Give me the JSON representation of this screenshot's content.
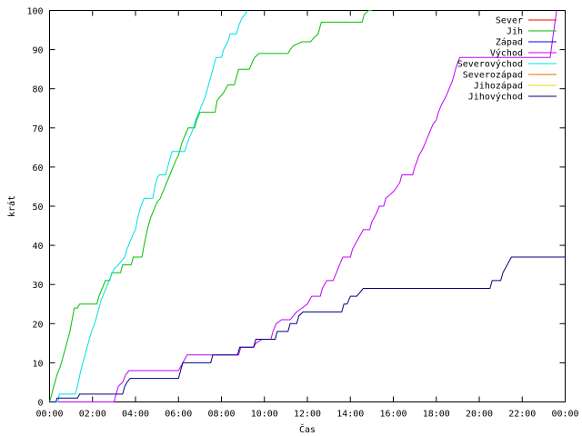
{
  "chart_data": {
    "type": "line",
    "title": "",
    "xlabel": "Čas",
    "ylabel": "krát",
    "xlim": [
      0,
      24
    ],
    "ylim": [
      0,
      100
    ],
    "x_ticks": [
      {
        "value": 0,
        "label": "00:00"
      },
      {
        "value": 2,
        "label": "02:00"
      },
      {
        "value": 4,
        "label": "04:00"
      },
      {
        "value": 6,
        "label": "06:00"
      },
      {
        "value": 8,
        "label": "08:00"
      },
      {
        "value": 10,
        "label": "10:00"
      },
      {
        "value": 12,
        "label": "12:00"
      },
      {
        "value": 14,
        "label": "14:00"
      },
      {
        "value": 16,
        "label": "16:00"
      },
      {
        "value": 18,
        "label": "18:00"
      },
      {
        "value": 20,
        "label": "20:00"
      },
      {
        "value": 22,
        "label": "22:00"
      },
      {
        "value": 24,
        "label": "00:00"
      }
    ],
    "y_ticks": [
      0,
      10,
      20,
      30,
      40,
      50,
      60,
      70,
      80,
      90,
      100
    ],
    "grid": false,
    "legend_position": "top-right",
    "series": [
      {
        "name": "Sever",
        "color": "#ff0000",
        "points": []
      },
      {
        "name": "Jih",
        "color": "#00c000",
        "points": [
          [
            0.0,
            0
          ],
          [
            0.1,
            2
          ],
          [
            0.2,
            4
          ],
          [
            0.35,
            7
          ],
          [
            0.5,
            9
          ],
          [
            0.65,
            12
          ],
          [
            0.8,
            15
          ],
          [
            0.95,
            18
          ],
          [
            1.05,
            21
          ],
          [
            1.15,
            24
          ],
          [
            1.3,
            24
          ],
          [
            1.4,
            25
          ],
          [
            2.2,
            25
          ],
          [
            2.3,
            27
          ],
          [
            2.45,
            29
          ],
          [
            2.6,
            31
          ],
          [
            2.8,
            31
          ],
          [
            2.9,
            33
          ],
          [
            3.3,
            33
          ],
          [
            3.4,
            35
          ],
          [
            3.8,
            35
          ],
          [
            3.9,
            37
          ],
          [
            4.3,
            37
          ],
          [
            4.4,
            40
          ],
          [
            4.55,
            44
          ],
          [
            4.7,
            47
          ],
          [
            4.85,
            49
          ],
          [
            5.0,
            51
          ],
          [
            5.15,
            52
          ],
          [
            5.3,
            54
          ],
          [
            5.45,
            56
          ],
          [
            5.6,
            58
          ],
          [
            5.75,
            60
          ],
          [
            5.9,
            62
          ],
          [
            6.0,
            63
          ],
          [
            6.15,
            66
          ],
          [
            6.3,
            68
          ],
          [
            6.45,
            70
          ],
          [
            6.6,
            70
          ],
          [
            6.75,
            70
          ],
          [
            6.85,
            72
          ],
          [
            7.0,
            74
          ],
          [
            7.5,
            74
          ],
          [
            7.7,
            74
          ],
          [
            7.8,
            77
          ],
          [
            7.95,
            78
          ],
          [
            8.1,
            79
          ],
          [
            8.3,
            81
          ],
          [
            8.6,
            81
          ],
          [
            8.7,
            83
          ],
          [
            8.8,
            85
          ],
          [
            9.3,
            85
          ],
          [
            9.45,
            87
          ],
          [
            9.55,
            88
          ],
          [
            9.75,
            89
          ],
          [
            11.1,
            89
          ],
          [
            11.2,
            90
          ],
          [
            11.35,
            91
          ],
          [
            11.75,
            92
          ],
          [
            12.15,
            92
          ],
          [
            12.3,
            93
          ],
          [
            12.5,
            94
          ],
          [
            12.55,
            95
          ],
          [
            12.65,
            97
          ],
          [
            14.55,
            97
          ],
          [
            14.65,
            99
          ],
          [
            14.85,
            100
          ],
          [
            15.0,
            100
          ]
        ]
      },
      {
        "name": "Západ",
        "color": "#0000ff",
        "points": []
      },
      {
        "name": "Východ",
        "color": "#c000ff",
        "points": [
          [
            0.0,
            0
          ],
          [
            3.0,
            0
          ],
          [
            3.1,
            2
          ],
          [
            3.2,
            4
          ],
          [
            3.4,
            5
          ],
          [
            3.55,
            7
          ],
          [
            3.7,
            8
          ],
          [
            6.0,
            8
          ],
          [
            6.2,
            10
          ],
          [
            6.4,
            12
          ],
          [
            8.8,
            12
          ],
          [
            8.9,
            14
          ],
          [
            9.5,
            14
          ],
          [
            9.6,
            15
          ],
          [
            9.9,
            16
          ],
          [
            10.3,
            16
          ],
          [
            10.4,
            18
          ],
          [
            10.55,
            20
          ],
          [
            10.8,
            21
          ],
          [
            11.2,
            21
          ],
          [
            11.35,
            22
          ],
          [
            11.5,
            23
          ],
          [
            11.75,
            24
          ],
          [
            12.0,
            25
          ],
          [
            12.2,
            27
          ],
          [
            12.6,
            27
          ],
          [
            12.7,
            29
          ],
          [
            12.9,
            31
          ],
          [
            13.2,
            31
          ],
          [
            13.35,
            33
          ],
          [
            13.5,
            35
          ],
          [
            13.65,
            37
          ],
          [
            14.0,
            37
          ],
          [
            14.1,
            39
          ],
          [
            14.3,
            41
          ],
          [
            14.5,
            43
          ],
          [
            14.6,
            44
          ],
          [
            14.9,
            44
          ],
          [
            15.0,
            46
          ],
          [
            15.2,
            48
          ],
          [
            15.35,
            50
          ],
          [
            15.55,
            50
          ],
          [
            15.65,
            52
          ],
          [
            15.85,
            53
          ],
          [
            16.05,
            54
          ],
          [
            16.3,
            56
          ],
          [
            16.4,
            58
          ],
          [
            16.9,
            58
          ],
          [
            17.0,
            60
          ],
          [
            17.2,
            63
          ],
          [
            17.4,
            65
          ],
          [
            17.55,
            67
          ],
          [
            17.7,
            69
          ],
          [
            17.85,
            71
          ],
          [
            18.0,
            72
          ],
          [
            18.1,
            74
          ],
          [
            18.25,
            76
          ],
          [
            18.45,
            78
          ],
          [
            18.6,
            80
          ],
          [
            18.75,
            82
          ],
          [
            18.85,
            84
          ],
          [
            18.95,
            86
          ],
          [
            19.1,
            88
          ],
          [
            23.3,
            88
          ],
          [
            23.4,
            92
          ],
          [
            23.5,
            96
          ],
          [
            23.6,
            100
          ]
        ]
      },
      {
        "name": "Severovýchod",
        "color": "#00e0e0",
        "points": [
          [
            0.0,
            0
          ],
          [
            0.4,
            0
          ],
          [
            0.45,
            2
          ],
          [
            1.2,
            2
          ],
          [
            1.3,
            4
          ],
          [
            1.45,
            8
          ],
          [
            1.6,
            11
          ],
          [
            1.8,
            15
          ],
          [
            1.95,
            18
          ],
          [
            2.1,
            20
          ],
          [
            2.25,
            23
          ],
          [
            2.4,
            26
          ],
          [
            2.55,
            28
          ],
          [
            2.7,
            30
          ],
          [
            2.85,
            32
          ],
          [
            3.0,
            34
          ],
          [
            3.2,
            35
          ],
          [
            3.35,
            36
          ],
          [
            3.5,
            37
          ],
          [
            3.6,
            39
          ],
          [
            3.75,
            41
          ],
          [
            3.9,
            43
          ],
          [
            4.0,
            44
          ],
          [
            4.1,
            47
          ],
          [
            4.25,
            50
          ],
          [
            4.4,
            52
          ],
          [
            4.8,
            52
          ],
          [
            4.9,
            55
          ],
          [
            5.0,
            57
          ],
          [
            5.1,
            58
          ],
          [
            5.4,
            58
          ],
          [
            5.5,
            60
          ],
          [
            5.6,
            62
          ],
          [
            5.7,
            64
          ],
          [
            6.3,
            64
          ],
          [
            6.4,
            66
          ],
          [
            6.55,
            68
          ],
          [
            6.7,
            70
          ],
          [
            6.8,
            72
          ],
          [
            6.95,
            74
          ],
          [
            7.1,
            76
          ],
          [
            7.25,
            78
          ],
          [
            7.35,
            80
          ],
          [
            7.45,
            82
          ],
          [
            7.55,
            84
          ],
          [
            7.65,
            86
          ],
          [
            7.75,
            88
          ],
          [
            8.0,
            88
          ],
          [
            8.1,
            90
          ],
          [
            8.3,
            92
          ],
          [
            8.4,
            94
          ],
          [
            8.7,
            94
          ],
          [
            8.8,
            96
          ],
          [
            8.95,
            98
          ],
          [
            9.1,
            99
          ],
          [
            9.2,
            100
          ]
        ]
      },
      {
        "name": "Severozápad",
        "color": "#e07000",
        "points": []
      },
      {
        "name": "Jihozápad",
        "color": "#e8d800",
        "points": []
      },
      {
        "name": "Jihovýchod",
        "color": "#000080",
        "points": [
          [
            0.0,
            0
          ],
          [
            0.3,
            0
          ],
          [
            0.35,
            1
          ],
          [
            1.3,
            1
          ],
          [
            1.4,
            2
          ],
          [
            3.4,
            2
          ],
          [
            3.5,
            4
          ],
          [
            3.6,
            5
          ],
          [
            3.75,
            6
          ],
          [
            6.0,
            6
          ],
          [
            6.1,
            8
          ],
          [
            6.2,
            10
          ],
          [
            7.5,
            10
          ],
          [
            7.6,
            12
          ],
          [
            8.75,
            12
          ],
          [
            8.85,
            14
          ],
          [
            9.5,
            14
          ],
          [
            9.6,
            16
          ],
          [
            10.5,
            16
          ],
          [
            10.6,
            18
          ],
          [
            11.1,
            18
          ],
          [
            11.2,
            20
          ],
          [
            11.5,
            20
          ],
          [
            11.6,
            22
          ],
          [
            11.8,
            23
          ],
          [
            13.6,
            23
          ],
          [
            13.7,
            25
          ],
          [
            13.85,
            25
          ],
          [
            14.0,
            27
          ],
          [
            14.3,
            27
          ],
          [
            14.45,
            28
          ],
          [
            14.6,
            29
          ],
          [
            20.5,
            29
          ],
          [
            20.6,
            31
          ],
          [
            21.0,
            31
          ],
          [
            21.1,
            33
          ],
          [
            21.3,
            35
          ],
          [
            21.5,
            37
          ],
          [
            24.0,
            37
          ]
        ]
      }
    ]
  }
}
